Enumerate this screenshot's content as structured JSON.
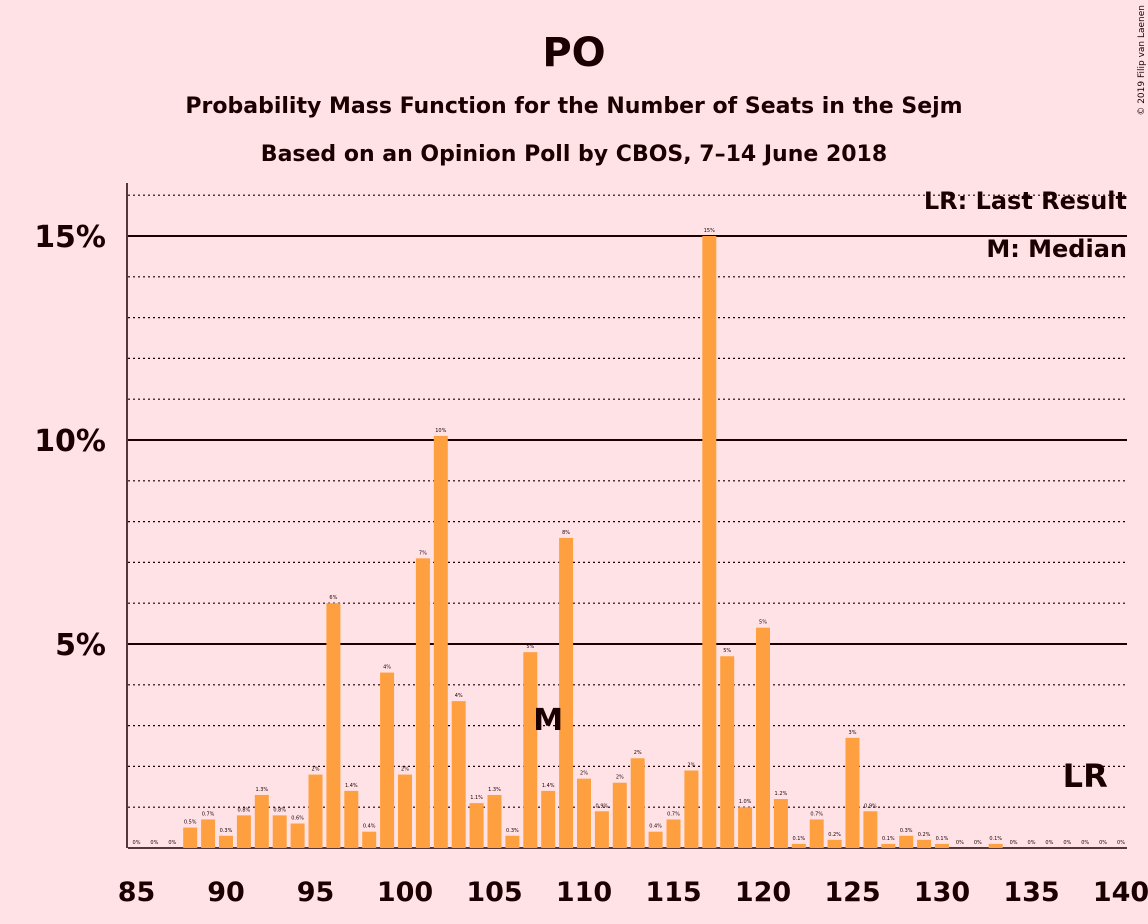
{
  "chart_data": {
    "type": "bar",
    "title": "PO",
    "subtitle_1": "Probability Mass Function for the Number of Seats in the Sejm",
    "subtitle_2": "Based on an Opinion Poll by CBOS, 7–14 June 2018",
    "copyright": "© 2019 Filip van Laenen",
    "legend": [
      "LR: Last Result",
      "M: Median"
    ],
    "legend_position": "top-right",
    "x": [
      85,
      86,
      87,
      88,
      89,
      90,
      91,
      92,
      93,
      94,
      95,
      96,
      97,
      98,
      99,
      100,
      101,
      102,
      103,
      104,
      105,
      106,
      107,
      108,
      109,
      110,
      111,
      112,
      113,
      114,
      115,
      116,
      117,
      118,
      119,
      120,
      121,
      122,
      123,
      124,
      125,
      126,
      127,
      128,
      129,
      130,
      131,
      132,
      133,
      134,
      135,
      136,
      137,
      138,
      139,
      140
    ],
    "values": [
      0,
      0,
      0,
      0.5,
      0.7,
      0.3,
      0.8,
      1.3,
      0.8,
      0.6,
      1.8,
      6.0,
      1.4,
      0.4,
      4.3,
      1.8,
      7.1,
      10.1,
      3.6,
      1.1,
      1.3,
      0.3,
      4.8,
      1.4,
      7.6,
      1.7,
      0.9,
      1.6,
      2.2,
      0.4,
      0.7,
      1.9,
      15.0,
      4.7,
      1.0,
      5.4,
      1.2,
      0.1,
      0.7,
      0.2,
      2.7,
      0.9,
      0.1,
      0.3,
      0.2,
      0.1,
      0,
      0,
      0.1,
      0,
      0,
      0,
      0,
      0,
      0,
      0
    ],
    "labels": [
      "0%",
      "0%",
      "0%",
      "0.5%",
      "0.7%",
      "0.3%",
      "0.8%",
      "1.3%",
      "0.8%",
      "0.6%",
      "2%",
      "6%",
      "1.4%",
      "0.4%",
      "4%",
      "2%",
      "7%",
      "10%",
      "4%",
      "1.1%",
      "1.3%",
      "0.3%",
      "5%",
      "1.4%",
      "8%",
      "2%",
      "0.9%",
      "2%",
      "2%",
      "0.4%",
      "0.7%",
      "2%",
      "15%",
      "5%",
      "1.0%",
      "5%",
      "1.2%",
      "0.1%",
      "0.7%",
      "0.2%",
      "3%",
      "0.9%",
      "0.1%",
      "0.3%",
      "0.2%",
      "0.1%",
      "0%",
      "0%",
      "0.1%",
      "0%",
      "0%",
      "0%",
      "0%",
      "0%",
      "0%",
      "0%"
    ],
    "xticks": [
      85,
      90,
      95,
      100,
      105,
      110,
      115,
      120,
      125,
      130,
      135,
      140
    ],
    "yticks": [
      {
        "value": 5,
        "label": "5%"
      },
      {
        "value": 10,
        "label": "10%"
      },
      {
        "value": 15,
        "label": "15%"
      }
    ],
    "ylim": [
      0,
      16.3
    ],
    "median_seat": 108,
    "median_label": "M",
    "last_result_seat": 138,
    "last_result_label": "LR",
    "grid": "solid at 5% steps, dotted at 1% steps",
    "colors": {
      "bar": "#ffa040",
      "background": "#ffe2e6",
      "text": "#1a0000"
    }
  }
}
